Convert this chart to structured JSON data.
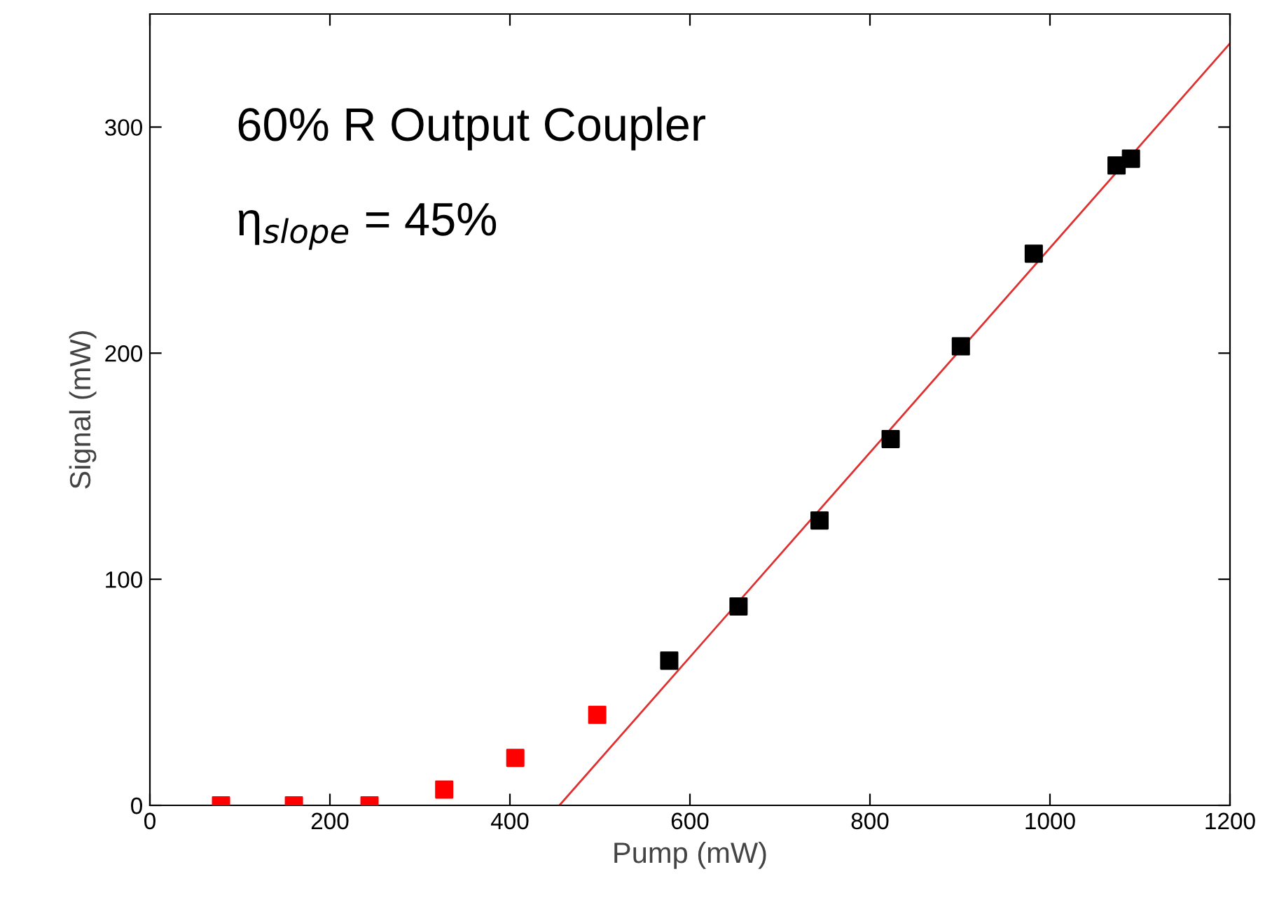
{
  "chart_data": {
    "type": "scatter",
    "xlabel": "Pump (mW)",
    "ylabel": "Signal (mW)",
    "xlim": [
      0,
      1200
    ],
    "ylim": [
      0,
      350
    ],
    "xticks": [
      0,
      200,
      400,
      600,
      800,
      1000,
      1200
    ],
    "yticks": [
      0,
      100,
      200,
      300
    ],
    "grid": false,
    "legend": false,
    "marker": "square",
    "annotations": [
      "60% R Output Coupler",
      "η$_{slope}$ = 45%"
    ],
    "series": [
      {
        "color": "#ff0000",
        "x": [
          79,
          160,
          244,
          327,
          406,
          497
        ],
        "values": [
          0,
          0,
          0,
          7,
          21,
          40
        ]
      },
      {
        "color": "#000000",
        "x": [
          577,
          654,
          744,
          823,
          901,
          982,
          1074,
          1090
        ],
        "values": [
          64,
          88,
          126,
          162,
          203,
          244,
          283,
          286
        ]
      },
      {
        "type": "line",
        "color": "#e03030",
        "marker": "none",
        "x": [
          455,
          1200
        ],
        "values": [
          0,
          337
        ]
      }
    ]
  }
}
